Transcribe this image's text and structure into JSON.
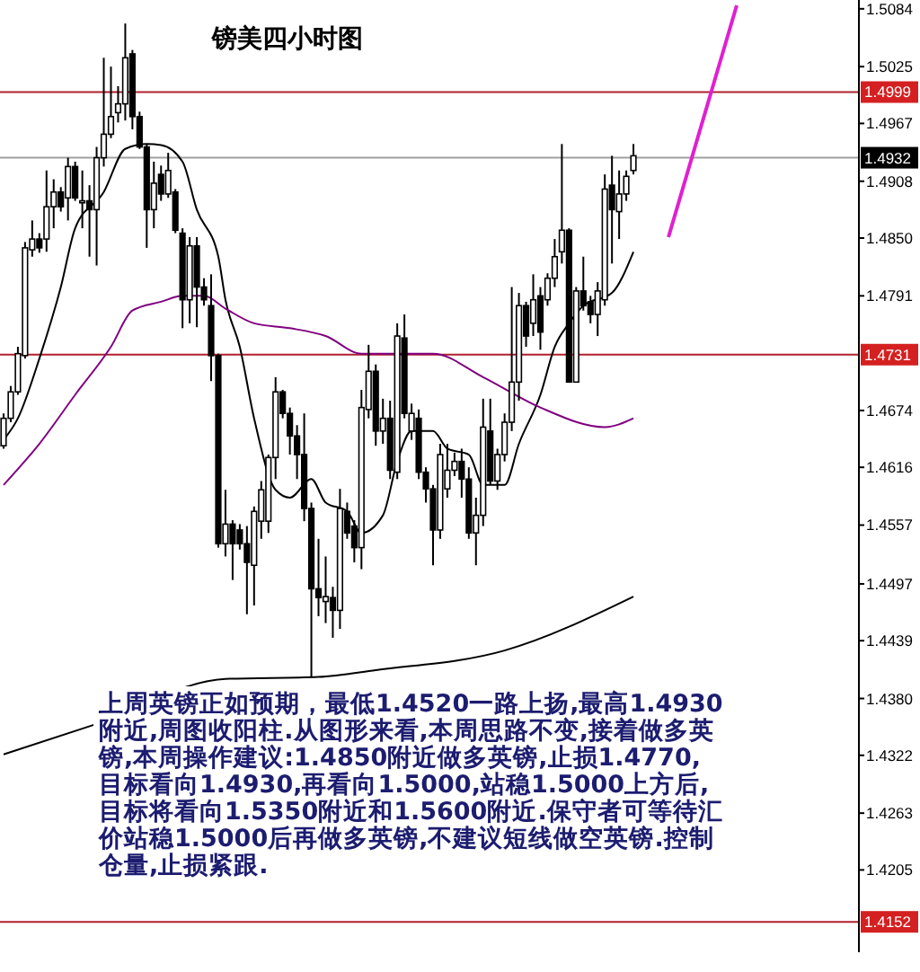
{
  "chart_data": {
    "type": "candlestick",
    "title": "镑美四小时图",
    "annotations": [
      "上周英镑正如预期，最低1.4520一路上扬,最高1.4930附近,周图收阳柱.从图形来看,本周思路不变,接着做多英镑,本周操作建议:1.4850附近做多英镑,止损1.4770,目标看向1.4930,再看向1.5000,站稳1.5000上方后,目标将看向1.5350附近和1.5600附近.保守者可等待汇价站稳1.5000后再做多英镑,不建议短线做空英镑.控制仓量,止损紧跟."
    ],
    "categories": [
      null,
      null,
      null,
      null,
      null,
      null,
      null,
      null,
      null,
      null,
      null,
      null,
      null,
      null,
      null,
      null,
      null,
      null,
      null,
      null,
      null,
      null,
      null,
      null,
      null,
      null,
      null,
      null,
      null,
      null,
      null,
      null,
      null,
      null,
      null,
      null,
      null,
      null,
      null,
      null,
      null,
      null,
      null,
      null,
      null,
      null,
      null,
      null,
      null,
      null,
      null,
      null,
      null,
      null,
      null,
      null,
      null,
      null,
      null,
      null,
      null,
      null,
      null,
      null,
      null,
      null,
      null,
      null,
      null,
      null,
      null,
      null,
      null,
      null,
      null,
      null,
      null,
      null,
      null,
      null,
      null,
      null,
      null,
      null,
      null,
      null,
      null,
      null,
      null,
      null,
      null,
      null,
      null,
      null,
      null,
      null,
      null,
      null,
      null,
      null,
      null,
      null,
      null,
      null,
      null,
      null,
      null,
      null,
      null,
      null,
      null,
      null,
      null,
      null,
      null,
      null,
      null,
      null,
      null,
      null
    ],
    "ohlc": [
      [
        1.4638,
        1.4671,
        1.4635,
        1.4666
      ],
      [
        1.4666,
        1.4699,
        1.4662,
        1.4693
      ],
      [
        1.4693,
        1.4739,
        1.469,
        1.4732
      ],
      [
        1.473,
        1.4846,
        1.4727,
        1.484
      ],
      [
        1.4838,
        1.4868,
        1.4831,
        1.4849
      ],
      [
        1.4849,
        1.4855,
        1.4835,
        1.484
      ],
      [
        1.4849,
        1.4919,
        1.4836,
        1.4882
      ],
      [
        1.4882,
        1.491,
        1.486,
        1.4897
      ],
      [
        1.4897,
        1.4902,
        1.4877,
        1.4882
      ],
      [
        1.4891,
        1.4932,
        1.4868,
        1.4923
      ],
      [
        1.4923,
        1.4928,
        1.4888,
        1.4891
      ],
      [
        1.4886,
        1.4919,
        1.486,
        1.4888
      ],
      [
        1.4888,
        1.4904,
        1.4831,
        1.4879
      ],
      [
        1.4879,
        1.4943,
        1.4822,
        1.4932
      ],
      [
        1.4932,
        1.5034,
        1.4923,
        1.4956
      ],
      [
        1.4956,
        1.5025,
        1.4952,
        1.4974
      ],
      [
        1.4978,
        1.5005,
        1.4968,
        1.4987
      ],
      [
        1.4987,
        1.5069,
        1.497,
        1.5034
      ],
      [
        1.5038,
        1.5042,
        1.4961,
        1.4974
      ],
      [
        1.4974,
        1.4979,
        1.4941,
        1.4943
      ],
      [
        1.4943,
        1.4946,
        1.484,
        1.4879
      ],
      [
        1.4879,
        1.4928,
        1.486,
        1.4906
      ],
      [
        1.4915,
        1.4924,
        1.4888,
        1.4895
      ],
      [
        1.4895,
        1.4937,
        1.4891,
        1.4919
      ],
      [
        1.4897,
        1.49,
        1.4855,
        1.4858
      ],
      [
        1.4855,
        1.486,
        1.4758,
        1.4787
      ],
      [
        1.4787,
        1.4851,
        1.4763,
        1.4842
      ],
      [
        1.4842,
        1.4851,
        1.4759,
        1.48
      ],
      [
        1.48,
        1.4809,
        1.4781,
        1.4787
      ],
      [
        1.4781,
        1.4813,
        1.4704,
        1.473
      ],
      [
        1.473,
        1.4732,
        1.4534,
        1.4538
      ],
      [
        1.4538,
        1.4593,
        1.4525,
        1.4558
      ],
      [
        1.4558,
        1.4562,
        1.4501,
        1.4538
      ],
      [
        1.4552,
        1.4558,
        1.4532,
        1.4538
      ],
      [
        1.4538,
        1.4556,
        1.4466,
        1.4519
      ],
      [
        1.4516,
        1.4576,
        1.4475,
        1.4571
      ],
      [
        1.4561,
        1.4602,
        1.4543,
        1.4593
      ],
      [
        1.4561,
        1.4629,
        1.4549,
        1.4626
      ],
      [
        1.4626,
        1.4708,
        1.4604,
        1.4693
      ],
      [
        1.4693,
        1.4695,
        1.4666,
        1.4671
      ],
      [
        1.4671,
        1.4677,
        1.4629,
        1.4648
      ],
      [
        1.4648,
        1.4659,
        1.4604,
        1.4629
      ],
      [
        1.4629,
        1.4671,
        1.4561,
        1.4574
      ],
      [
        1.4574,
        1.458,
        1.4402,
        1.4492
      ],
      [
        1.4492,
        1.4543,
        1.4464,
        1.4483
      ],
      [
        1.4479,
        1.4525,
        1.4457,
        1.4484
      ],
      [
        1.4483,
        1.4494,
        1.4442,
        1.447
      ],
      [
        1.447,
        1.4594,
        1.4451,
        1.4574
      ],
      [
        1.4571,
        1.458,
        1.4543,
        1.4549
      ],
      [
        1.4556,
        1.4562,
        1.4519,
        1.4534
      ],
      [
        1.4534,
        1.4695,
        1.4512,
        1.4677
      ],
      [
        1.4675,
        1.4741,
        1.4666,
        1.4714
      ],
      [
        1.4714,
        1.4721,
        1.4638,
        1.4653
      ],
      [
        1.4653,
        1.4686,
        1.464,
        1.4666
      ],
      [
        1.4666,
        1.4684,
        1.4604,
        1.4613
      ],
      [
        1.4611,
        1.4763,
        1.4604,
        1.475
      ],
      [
        1.4748,
        1.4772,
        1.4666,
        1.4671
      ],
      [
        1.4653,
        1.4681,
        1.4644,
        1.4671
      ],
      [
        1.4666,
        1.4675,
        1.4604,
        1.4611
      ],
      [
        1.4611,
        1.4616,
        1.458,
        1.4594
      ],
      [
        1.4594,
        1.4598,
        1.4516,
        1.4552
      ],
      [
        1.4552,
        1.464,
        1.4543,
        1.4629
      ],
      [
        1.4594,
        1.464,
        1.4585,
        1.4613
      ],
      [
        1.4613,
        1.4631,
        1.4607,
        1.4622
      ],
      [
        1.4622,
        1.4635,
        1.4585,
        1.4604
      ],
      [
        1.4604,
        1.4616,
        1.4543,
        1.4549
      ],
      [
        1.4549,
        1.4585,
        1.4516,
        1.4567
      ],
      [
        1.4567,
        1.4686,
        1.4556,
        1.4657
      ],
      [
        1.4653,
        1.4686,
        1.4598,
        1.4602
      ],
      [
        1.4602,
        1.4635,
        1.4593,
        1.4629
      ],
      [
        1.4629,
        1.4671,
        1.4622,
        1.4662
      ],
      [
        1.4662,
        1.48,
        1.4653,
        1.4703
      ],
      [
        1.4703,
        1.4794,
        1.4684,
        1.4781
      ],
      [
        1.4781,
        1.4785,
        1.4739,
        1.475
      ],
      [
        1.4763,
        1.4813,
        1.475,
        1.4787
      ],
      [
        1.4791,
        1.48,
        1.4736,
        1.4754
      ],
      [
        1.4787,
        1.4814,
        1.4781,
        1.4809
      ],
      [
        1.4809,
        1.4849,
        1.48,
        1.4831
      ],
      [
        1.4836,
        1.4946,
        1.4824,
        1.4858
      ],
      [
        1.4858,
        1.486,
        1.4703,
        1.4703
      ],
      [
        1.4703,
        1.48,
        1.4703,
        1.4796
      ],
      [
        1.4796,
        1.4831,
        1.4776,
        1.4781
      ],
      [
        1.4785,
        1.4791,
        1.4763,
        1.4772
      ],
      [
        1.4772,
        1.4805,
        1.475,
        1.4796
      ],
      [
        1.4787,
        1.4915,
        1.4781,
        1.49
      ],
      [
        1.4904,
        1.4934,
        1.4824,
        1.4879
      ],
      [
        1.4877,
        1.4919,
        1.4849,
        1.4895
      ],
      [
        1.4895,
        1.4919,
        1.4888,
        1.4913
      ],
      [
        1.4919,
        1.4946,
        1.4915,
        1.4934
      ],
      null,
      null,
      null,
      null,
      null,
      null,
      null,
      null,
      null,
      null,
      null,
      null,
      null,
      null,
      null,
      null,
      null,
      null,
      null,
      null,
      null,
      null,
      null,
      null,
      null,
      null,
      null,
      null,
      null,
      null,
      null
    ],
    "series": [
      {
        "type": "line",
        "color": "#000000",
        "values": [
          1.4644,
          null,
          1.4666,
          null,
          null,
          1.4727,
          null,
          null,
          1.48,
          null,
          1.486,
          null,
          null,
          null,
          1.4897,
          null,
          null,
          1.4941,
          null,
          null,
          1.4946,
          null,
          1.4945,
          null,
          null,
          1.4928,
          null,
          1.4879,
          null,
          null,
          1.4831,
          1.4787,
          null,
          1.4739,
          null,
          1.4666,
          null,
          null,
          1.4593,
          null,
          1.4585,
          null,
          null,
          1.4604,
          null,
          1.458,
          null,
          null,
          1.4571,
          null,
          1.4549,
          null,
          null,
          1.4567,
          null,
          1.4622,
          null,
          1.4653,
          null,
          null,
          1.4653,
          null,
          1.4635,
          null,
          null,
          1.4629,
          null,
          1.4598,
          null,
          null,
          1.4598,
          null,
          1.464,
          null,
          null,
          1.469,
          null,
          1.4739,
          null,
          1.4763,
          null,
          1.4781,
          null,
          null,
          null,
          1.4794,
          null,
          null,
          1.4836,
          null,
          null,
          null,
          null,
          null,
          null,
          null,
          null,
          null,
          null,
          null,
          null,
          null,
          null,
          null,
          null,
          null,
          null,
          null,
          null,
          null,
          null,
          null,
          null,
          null,
          null,
          null,
          null,
          null,
          null,
          null
        ]
      },
      {
        "type": "line",
        "color": "#800080",
        "values": [
          1.4598,
          null,
          null,
          null,
          null,
          1.464,
          null,
          null,
          null,
          null,
          1.469,
          null,
          null,
          null,
          null,
          1.4739,
          null,
          null,
          1.4776,
          null,
          null,
          null,
          1.4785,
          null,
          null,
          1.4791,
          null,
          null,
          1.4791,
          null,
          null,
          1.4778,
          null,
          null,
          null,
          1.4763,
          null,
          null,
          null,
          null,
          1.4758,
          null,
          null,
          null,
          null,
          1.475,
          null,
          null,
          null,
          null,
          1.4732,
          null,
          null,
          null,
          null,
          null,
          null,
          null,
          null,
          null,
          1.4732,
          null,
          null,
          null,
          null,
          null,
          null,
          1.4708,
          null,
          null,
          null,
          null,
          null,
          null,
          null,
          1.4677,
          null,
          null,
          null,
          null,
          null,
          null,
          null,
          null,
          1.4657,
          null,
          null,
          null,
          1.4666,
          null,
          null,
          null,
          null,
          null,
          null,
          null,
          null,
          null,
          null,
          null,
          null,
          null,
          null,
          null,
          null,
          null,
          null,
          null,
          null,
          null,
          null,
          null,
          null,
          null,
          null,
          null,
          null,
          null,
          null,
          null
        ]
      },
      {
        "type": "line",
        "color": "#000000",
        "values": [
          1.4323,
          null,
          null,
          null,
          null,
          null,
          null,
          null,
          null,
          null,
          null,
          null,
          null,
          1.4354,
          null,
          null,
          null,
          null,
          null,
          null,
          null,
          null,
          null,
          null,
          null,
          null,
          null,
          null,
          null,
          null,
          null,
          1.44,
          null,
          null,
          null,
          null,
          null,
          null,
          null,
          null,
          null,
          null,
          null,
          null,
          1.4402,
          null,
          null,
          null,
          null,
          null,
          null,
          null,
          1.4409,
          null,
          null,
          null,
          null,
          null,
          null,
          null,
          null,
          null,
          null,
          null,
          null,
          null,
          null,
          null,
          null,
          null,
          1.4429,
          null,
          null,
          null,
          null,
          null,
          null,
          null,
          null,
          null,
          null,
          null,
          null,
          null,
          null,
          null,
          null,
          null,
          1.4484,
          null,
          null,
          null,
          null,
          null,
          null,
          null,
          null,
          null,
          null,
          null,
          null,
          null,
          null,
          null,
          null,
          null,
          null,
          null,
          null,
          null,
          null,
          null,
          null,
          null,
          null,
          null,
          null,
          null,
          null,
          null
        ]
      }
    ],
    "ylim": [
      1.4121,
      1.5093
    ],
    "yticks": [
      1.5084,
      1.5025,
      1.4967,
      1.4908,
      {
        "value": 1.485,
        "label": "1.4850"
      },
      1.4791,
      1.4674,
      1.4616,
      1.4557,
      1.4497,
      1.4439,
      {
        "value": 1.438,
        "label": "1.4380"
      },
      1.4322,
      1.4263,
      1.4205
    ],
    "ref_lines": [
      {
        "axis": "y",
        "value": 1.4999,
        "label": "1.4999",
        "color": "#b0202c"
      },
      {
        "axis": "y",
        "value": 1.4932,
        "label": "1.4932",
        "color": "#a0a0a0"
      },
      {
        "axis": "y",
        "value": 1.4731,
        "label": "1.4731",
        "color": "#b0202c"
      },
      {
        "axis": "y",
        "value": 1.4152,
        "label": "1.4152",
        "color": "#b0202c"
      }
    ],
    "tick_labels": "y"
  }
}
